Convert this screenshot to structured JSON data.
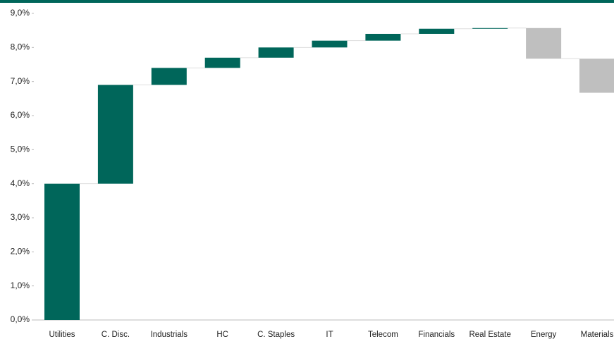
{
  "chart_data": {
    "type": "waterfall",
    "categories": [
      "Utilities",
      "C. Disc.",
      "Industrials",
      "HC",
      "C. Staples",
      "IT",
      "Telecom",
      "Financials",
      "Real Estate",
      "Energy",
      "Materials"
    ],
    "values": [
      4.0,
      2.9,
      0.5,
      0.3,
      0.3,
      0.2,
      0.2,
      0.15,
      0.02,
      -0.9,
      -1.0
    ],
    "color": "#00665a",
    "negative_color": "#bfbfbf",
    "ylim": [
      0,
      9
    ],
    "yticks": [
      {
        "value": 0,
        "label": "0,0%"
      },
      {
        "value": 1,
        "label": "1,0%"
      },
      {
        "value": 2,
        "label": "2,0%"
      },
      {
        "value": 3,
        "label": "3,0%"
      },
      {
        "value": 4,
        "label": "4,0%"
      },
      {
        "value": 5,
        "label": "5,0%"
      },
      {
        "value": 6,
        "label": "6,0%"
      },
      {
        "value": 7,
        "label": "7,0%"
      },
      {
        "value": 8,
        "label": "8,0%"
      },
      {
        "value": 9,
        "label": "9,0%"
      }
    ]
  }
}
